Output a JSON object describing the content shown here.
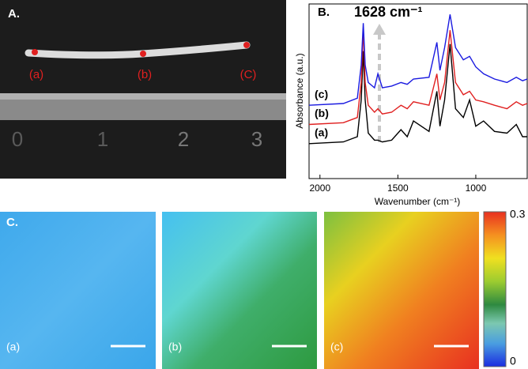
{
  "panel_a": {
    "label": "A.",
    "points": [
      "(a)",
      "(b)",
      "(C)"
    ],
    "ruler_numbers": [
      "0",
      "1",
      "2",
      "3"
    ]
  },
  "chart_data": {
    "type": "line",
    "panel_label": "B.",
    "annotation": "1628 cm⁻¹",
    "x_label": "Wavenumber (cm⁻¹)",
    "y_label": "Absorbance (a.u.)",
    "x": [
      2070,
      1850,
      1760,
      1735,
      1722,
      1710,
      1690,
      1650,
      1628,
      1600,
      1540,
      1480,
      1440,
      1400,
      1300,
      1250,
      1230,
      1200,
      1165,
      1130,
      1080,
      1040,
      1000,
      950,
      880,
      800,
      740,
      700,
      670
    ],
    "series": [
      {
        "name": "(a)",
        "color": "#000000",
        "values": [
          0.2,
          0.21,
          0.24,
          0.45,
          0.73,
          0.45,
          0.26,
          0.22,
          0.22,
          0.21,
          0.22,
          0.28,
          0.24,
          0.33,
          0.27,
          0.5,
          0.3,
          0.45,
          0.77,
          0.4,
          0.35,
          0.45,
          0.3,
          0.33,
          0.27,
          0.26,
          0.31,
          0.24,
          0.24
        ]
      },
      {
        "name": "(b)",
        "color": "#e02020",
        "values": [
          0.31,
          0.32,
          0.35,
          0.55,
          0.86,
          0.55,
          0.42,
          0.38,
          0.4,
          0.37,
          0.38,
          0.42,
          0.4,
          0.44,
          0.42,
          0.6,
          0.45,
          0.55,
          0.85,
          0.55,
          0.48,
          0.5,
          0.45,
          0.44,
          0.42,
          0.4,
          0.44,
          0.42,
          0.43
        ]
      },
      {
        "name": "(c)",
        "color": "#1a1ae0",
        "values": [
          0.42,
          0.43,
          0.46,
          0.65,
          0.89,
          0.65,
          0.55,
          0.52,
          0.6,
          0.52,
          0.53,
          0.55,
          0.54,
          0.57,
          0.58,
          0.78,
          0.62,
          0.75,
          0.94,
          0.75,
          0.68,
          0.7,
          0.64,
          0.6,
          0.57,
          0.55,
          0.58,
          0.56,
          0.57
        ]
      }
    ],
    "xlim": [
      2070,
      670
    ],
    "xticks": [
      2000,
      1500,
      1000
    ],
    "ylim": [
      0,
      1
    ]
  },
  "panel_c": {
    "label": "C.",
    "maps": [
      "(a)",
      "(b)",
      "(c)"
    ],
    "colorbar": [
      0.3,
      0
    ]
  }
}
